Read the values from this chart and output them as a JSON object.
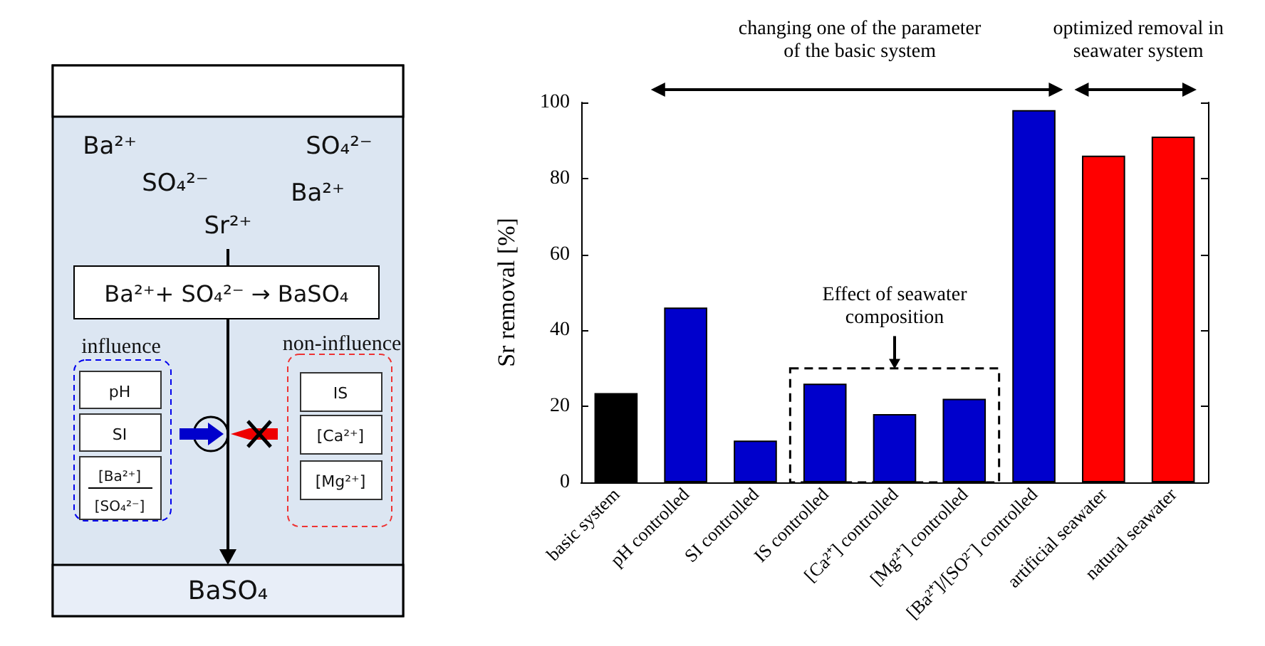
{
  "chart_data": [
    {
      "type": "other",
      "annotations": [
        "Ba²⁺",
        "SO₄²⁻",
        "SO₄²⁻",
        "Ba²⁺",
        "Sr²⁺",
        "Ba²⁺+ SO₄²⁻ → BaSO₄",
        "influence",
        "non-influence",
        "pH",
        "SI",
        "[Ba²⁺]",
        "[SO₄²⁻]",
        "IS",
        "[Ca²⁺]",
        "[Mg²⁺]",
        "BaSO₄"
      ]
    },
    {
      "type": "bar",
      "ylabel": "Sr removal [%]",
      "categories": [
        "basic system",
        "pH controlled",
        "SI controlled",
        "IS controlled",
        "[Ca²⁺] controlled",
        "[Mg²⁺] controlled",
        "[Ba²⁺]/[SO²⁻] controlled",
        "artificial seawater",
        "natural seawater"
      ],
      "values": [
        23.5,
        46,
        11,
        26,
        18,
        22,
        98,
        86,
        91
      ],
      "colors": [
        "#000000",
        "#0000cc",
        "#0000cc",
        "#0000cc",
        "#0000cc",
        "#0000cc",
        "#0000cc",
        "#ff0000",
        "#ff0000"
      ],
      "ylim": [
        0,
        100
      ],
      "yticks": [
        0,
        20,
        40,
        60,
        80,
        100
      ],
      "grid": false,
      "annotations": [
        "changing one of the parameter\nof the basic system",
        "optimized removal in\nseawater system",
        "Effect of seawater\ncomposition"
      ]
    }
  ]
}
